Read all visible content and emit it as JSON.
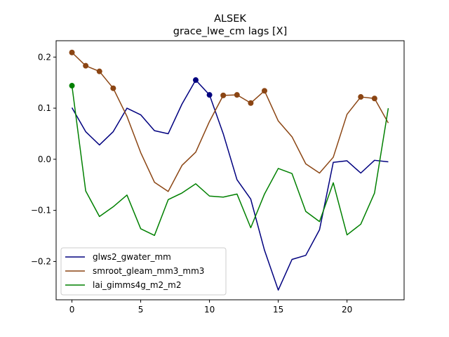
{
  "chart_data": {
    "type": "line",
    "title": "ALSEK",
    "subtitle": "grace_lwe_cm lags [X]",
    "xlabel": "",
    "ylabel": "",
    "xlim": [
      -1.15,
      24.15
    ],
    "ylim": [
      -0.275,
      0.232
    ],
    "xticks": [
      0,
      5,
      10,
      15,
      20
    ],
    "yticks": [
      -0.2,
      -0.1,
      0.0,
      0.1,
      0.2
    ],
    "xtick_labels": [
      "0",
      "5",
      "10",
      "15",
      "20"
    ],
    "ytick_labels": [
      "−0.2",
      "−0.1",
      "0.0",
      "0.1",
      "0.2"
    ],
    "legend_position": "lower-left",
    "grid": false,
    "x": [
      0,
      1,
      2,
      3,
      4,
      5,
      6,
      7,
      8,
      9,
      10,
      11,
      12,
      13,
      14,
      15,
      16,
      17,
      18,
      19,
      20,
      21,
      22,
      23
    ],
    "series": [
      {
        "name": "glws2_gwater_mm",
        "color": "#00007f",
        "values": [
          0.101,
          0.054,
          0.028,
          0.054,
          0.1,
          0.087,
          0.056,
          0.05,
          0.108,
          0.155,
          0.126,
          0.05,
          -0.04,
          -0.078,
          -0.178,
          -0.256,
          -0.196,
          -0.188,
          -0.138,
          -0.006,
          -0.003,
          -0.027,
          -0.002,
          -0.005
        ],
        "highlight_x": [
          9,
          10
        ]
      },
      {
        "name": "smroot_gleam_mm3_mm3",
        "color": "#8b4513",
        "values": [
          0.209,
          0.183,
          0.172,
          0.139,
          0.084,
          0.013,
          -0.045,
          -0.063,
          -0.012,
          0.014,
          0.074,
          0.125,
          0.126,
          0.11,
          0.134,
          0.075,
          0.044,
          -0.009,
          -0.027,
          0.004,
          0.088,
          0.122,
          0.119,
          0.071
        ],
        "highlight_x": [
          0,
          1,
          2,
          3,
          11,
          12,
          13,
          14,
          21,
          22
        ]
      },
      {
        "name": "lai_gimms4g_m2_m2",
        "color": "#008000",
        "values": [
          0.144,
          -0.062,
          -0.112,
          -0.093,
          -0.07,
          -0.136,
          -0.149,
          -0.079,
          -0.066,
          -0.048,
          -0.072,
          -0.074,
          -0.068,
          -0.134,
          -0.068,
          -0.018,
          -0.028,
          -0.102,
          -0.122,
          -0.046,
          -0.148,
          -0.127,
          -0.066,
          0.1
        ],
        "highlight_x": [
          0
        ]
      }
    ]
  }
}
